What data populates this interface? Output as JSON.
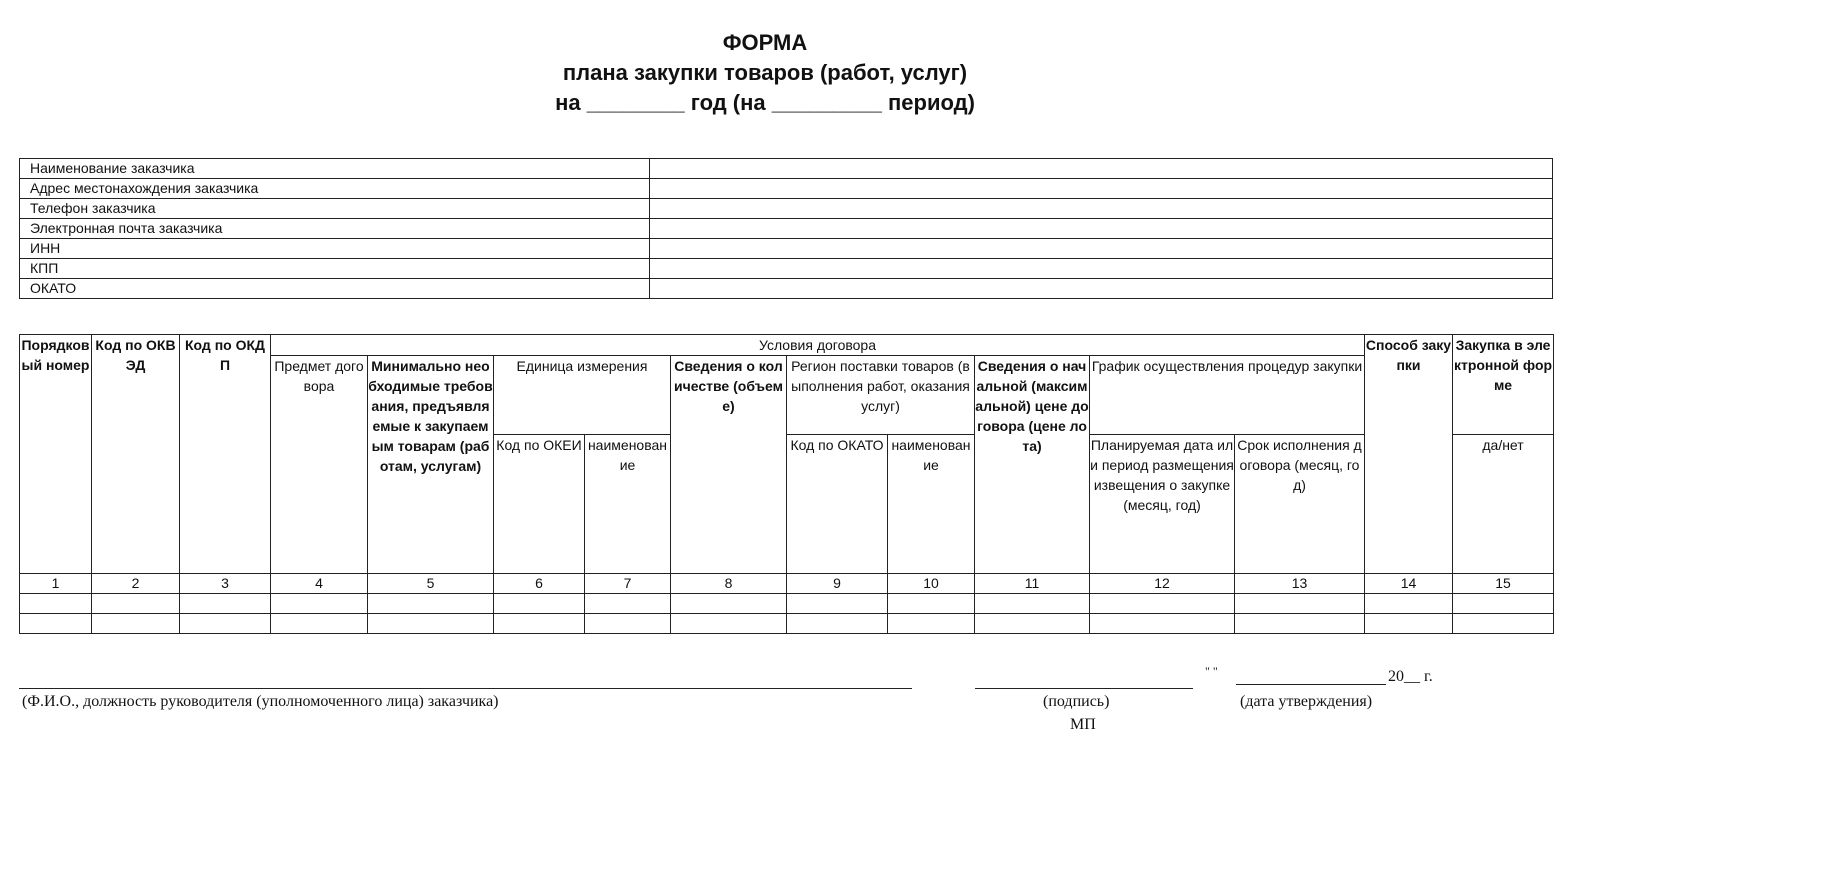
{
  "title": {
    "line1": "ФОРМА",
    "line2": "плана закупки товаров (работ, услуг)",
    "line3": "на ________ год (на _________ период)"
  },
  "customer_info": [
    "Наименование заказчика",
    "Адрес местонахождения заказчика",
    "Телефон заказчика",
    "Электронная почта заказчика",
    "ИНН",
    "КПП",
    "ОКАТО"
  ],
  "main_table": {
    "headers": {
      "order_number": "Порядковый номер",
      "okved": "Код по ОКВЭД",
      "okdp": "Код по ОКДП",
      "contract_terms": "Условия договора",
      "subject": "Предмет договора",
      "requirements": "Минимально необходимые требования, предъявляемые к закупаемым товарам (работам, услугам)",
      "unit": "Единица измерения",
      "unit_code": "Код по ОКЕИ",
      "unit_name": "наименование",
      "quantity": "Сведения о количестве (объеме)",
      "region": "Регион поставки товаров (выполнения работ, оказания услуг)",
      "region_code": "Код по ОКАТО",
      "region_name": "наименование",
      "price": "Сведения о начальной (максимальной) цене договора (цене лота)",
      "schedule": "График осуществления процедур закупки",
      "planned_date": "Планируемая дата или период размещения извещения о закупке (месяц, год)",
      "execution_term": "Срок исполнения договора (месяц, год)",
      "method": "Способ закупки",
      "electronic": "Закупка в электронной форме",
      "yes_no": "да/нет"
    },
    "column_numbers": [
      "1",
      "2",
      "3",
      "4",
      "5",
      "6",
      "7",
      "8",
      "9",
      "10",
      "11",
      "12",
      "13",
      "14",
      "15"
    ]
  },
  "footer": {
    "official_label": "(Ф.И.О.,  должность руководителя (уполномоченного лица) заказчика)",
    "signature_label": "(подпись)",
    "stamp_label": "МП",
    "date_quotes": "\"  \"",
    "date_year": "20__ г.",
    "date_label": "(дата утверждения)"
  }
}
